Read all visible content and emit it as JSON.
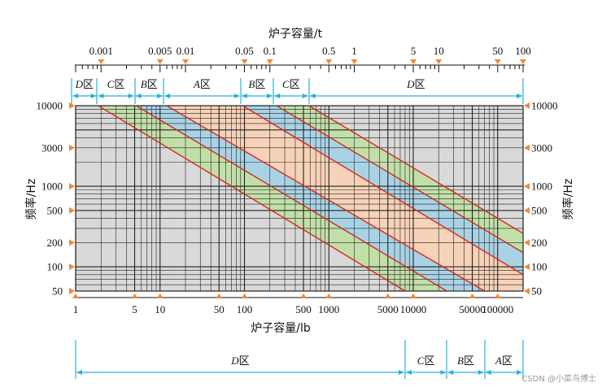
{
  "watermark": "CSDN @小菜鸟博士",
  "colors": {
    "grid_bg": "#d9d9d9",
    "grid_line": "#222222",
    "band_a": "#f6d2b8",
    "band_b": "#a9d3e5",
    "band_c": "#c2dfa9",
    "boundary": "#d12a1f",
    "marker": "#f0883a",
    "span_line": "#2ab0dc"
  },
  "chart_data": {
    "type": "nomogram",
    "title": "",
    "y_axis": {
      "title": "频率/Hz",
      "scale": "log",
      "range": [
        50,
        10000
      ],
      "ticks": [
        "10000",
        "3000",
        "1000",
        "500",
        "200",
        "100",
        "50"
      ],
      "tick_values": [
        10000,
        3000,
        1000,
        500,
        200,
        100,
        50
      ]
    },
    "bottom_axis": {
      "title": "炉子容量/lb",
      "scale": "log",
      "range": [
        1,
        200000
      ],
      "ticks": [
        "1",
        "5",
        "10",
        "50",
        "100",
        "500",
        "1000",
        "5000",
        "10000",
        "50000",
        "100000"
      ],
      "tick_values": [
        1,
        5,
        10,
        50,
        100,
        500,
        1000,
        5000,
        10000,
        50000,
        100000
      ],
      "markers": [
        1,
        5,
        10,
        50,
        100,
        500,
        1000,
        5000,
        10000,
        50000,
        100000
      ],
      "marker_labels_visible": [
        true,
        true,
        true,
        true,
        true,
        true,
        true,
        true,
        true,
        true,
        true
      ]
    },
    "top_axis": {
      "title": "炉子容量/t",
      "scale": "log",
      "ticks": [
        "0.001",
        "0.005",
        "0.01",
        "0.05",
        "0.1",
        "0.5",
        "1",
        "5",
        "10",
        "50",
        "100"
      ],
      "tick_values": [
        0.001,
        0.005,
        0.01,
        0.05,
        0.1,
        0.5,
        1,
        5,
        10,
        50,
        100
      ],
      "markers": [
        0.001,
        0.005,
        0.01,
        0.05,
        0.1,
        0.5,
        1,
        5,
        10,
        50,
        100
      ]
    },
    "zones_top": [
      {
        "letter": "D",
        "label": "区",
        "from": 0.00045,
        "to": 0.0009
      },
      {
        "letter": "C",
        "label": "区",
        "from": 0.0009,
        "to": 0.0025
      },
      {
        "letter": "B",
        "label": "区",
        "from": 0.0025,
        "to": 0.0055
      },
      {
        "letter": "A",
        "label": "区",
        "from": 0.0055,
        "to": 0.045
      },
      {
        "letter": "B",
        "label": "区",
        "from": 0.045,
        "to": 0.11
      },
      {
        "letter": "C",
        "label": "区",
        "from": 0.11,
        "to": 0.29
      },
      {
        "letter": "D",
        "label": "区",
        "from": 0.29,
        "to": 100
      }
    ],
    "zones_bottom": [
      {
        "letter": "D",
        "label": "区",
        "from": 1,
        "to": 8000
      },
      {
        "letter": "C",
        "label": "区",
        "from": 8000,
        "to": 25000
      },
      {
        "letter": "B",
        "label": "区",
        "from": 25000,
        "to": 70000
      },
      {
        "letter": "A",
        "label": "区",
        "from": 70000,
        "to": 200000
      }
    ],
    "boundary_lines": [
      {
        "name": "line-1",
        "from": [
          1.85,
          10000
        ],
        "to": [
          8000,
          50
        ]
      },
      {
        "name": "line-2",
        "from": [
          5.2,
          10000
        ],
        "to": [
          25000,
          50
        ]
      },
      {
        "name": "line-3",
        "from": [
          12,
          10000
        ],
        "to": [
          70000,
          50
        ]
      },
      {
        "name": "line-4",
        "from": [
          95,
          10000
        ],
        "to": [
          200000,
          80
        ]
      },
      {
        "name": "line-5",
        "from": [
          240,
          10000
        ],
        "to": [
          200000,
          150
        ]
      },
      {
        "name": "line-6",
        "from": [
          580,
          10000
        ],
        "to": [
          200000,
          260
        ]
      }
    ],
    "bands": [
      {
        "name": "band-c-low",
        "color_key": "band_c",
        "lines": [
          0,
          1
        ]
      },
      {
        "name": "band-b-low",
        "color_key": "band_b",
        "lines": [
          1,
          2
        ]
      },
      {
        "name": "band-a",
        "color_key": "band_a",
        "lines": [
          2,
          3
        ]
      },
      {
        "name": "band-b-high",
        "color_key": "band_b",
        "lines": [
          3,
          4
        ]
      },
      {
        "name": "band-c-high",
        "color_key": "band_c",
        "lines": [
          4,
          5
        ]
      }
    ]
  }
}
